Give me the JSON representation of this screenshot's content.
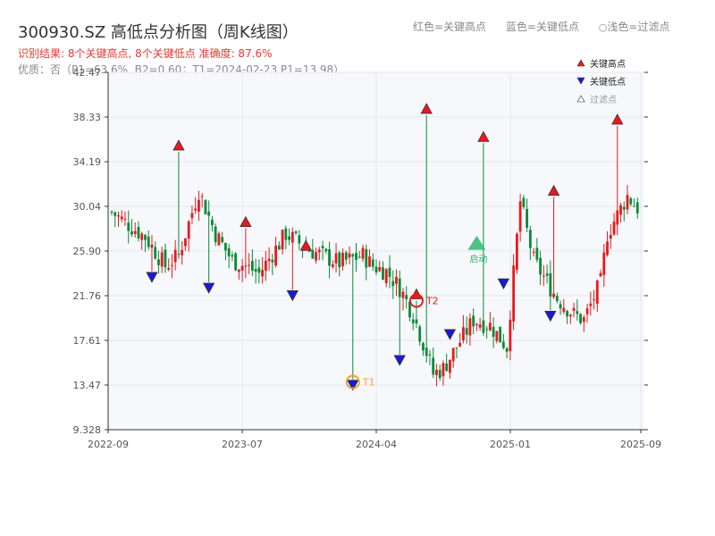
{
  "header": {
    "title": "300930.SZ 高低点分析图（周K线图）",
    "result": "识别结果: 8个关键高点, 8个关键低点   准确度: 87.6%",
    "quality": "优质：否（P1=63.6%, B2=0.60；T1=2024-02-23 P1=13.98）",
    "legend_high": "红色=关键高点",
    "legend_low": "蓝色=关键低点",
    "legend_filtered": "浅色=过滤点"
  },
  "chart_data": {
    "type": "candlestick",
    "ylim": [
      9.328,
      42.47
    ],
    "y_ticks": [
      "9.328",
      "13.47",
      "17.61",
      "21.76",
      "25.90",
      "30.04",
      "34.19",
      "38.33",
      "42.47"
    ],
    "x_ticks": [
      "2022-09",
      "2023-07",
      "2024-04",
      "2025-01",
      "2025-09"
    ],
    "grid": true,
    "legend": {
      "position": "top-right",
      "items": [
        "关键高点",
        "关键低点",
        "过滤点"
      ]
    },
    "colors": {
      "up": "#e8191e",
      "down": "#0a8a37",
      "high": "#e8191e",
      "low": "#1a1ad6",
      "filtered": "#c8c8c8",
      "t1": "#f0a030",
      "t2": "#e8191e",
      "start": "#2eb872"
    },
    "candle_count": 158,
    "closes_start": 29.5,
    "closes_path": [
      [
        0,
        29.5
      ],
      [
        10,
        27.2
      ],
      [
        16,
        24.5
      ],
      [
        20,
        25.5
      ],
      [
        26,
        31.5
      ],
      [
        31,
        27.5
      ],
      [
        36,
        25.0
      ],
      [
        40,
        24.5
      ],
      [
        44,
        23.8
      ],
      [
        52,
        27.5
      ],
      [
        59,
        26.0
      ],
      [
        68,
        24.8
      ],
      [
        75,
        25.5
      ],
      [
        78,
        24.5
      ],
      [
        82,
        24.0
      ],
      [
        86,
        22.5
      ],
      [
        90,
        20.0
      ],
      [
        94,
        16.5
      ],
      [
        96,
        14.5
      ],
      [
        99,
        15.0
      ],
      [
        104,
        17.5
      ],
      [
        108,
        19.5
      ],
      [
        113,
        19.0
      ],
      [
        118,
        17.0
      ],
      [
        122,
        30.5
      ],
      [
        126,
        25.0
      ],
      [
        133,
        21.5
      ],
      [
        138,
        20.0
      ],
      [
        141,
        19.5
      ],
      [
        146,
        23.0
      ],
      [
        148,
        27.5
      ],
      [
        154,
        31.0
      ],
      [
        158,
        29.5
      ]
    ],
    "key_highs": [
      {
        "week": 20,
        "value": 35.1
      },
      {
        "week": 40,
        "value": 28.0
      },
      {
        "week": 58,
        "value": 25.8
      },
      {
        "week": 91,
        "value": 21.3
      },
      {
        "week": 94,
        "value": 38.5
      },
      {
        "week": 111,
        "value": 35.9
      },
      {
        "week": 132,
        "value": 30.9
      },
      {
        "week": 151,
        "value": 37.5
      }
    ],
    "key_lows": [
      {
        "week": 12,
        "value": 24.0
      },
      {
        "week": 29,
        "value": 23.0
      },
      {
        "week": 54,
        "value": 22.3
      },
      {
        "week": 72,
        "value": 14.0
      },
      {
        "week": 86,
        "value": 16.3
      },
      {
        "week": 101,
        "value": 18.7
      },
      {
        "week": 117,
        "value": 23.4
      },
      {
        "week": 131,
        "value": 20.4
      }
    ],
    "annotations": [
      {
        "label": "T1",
        "week": 72,
        "value": 14.0
      },
      {
        "label": "T2",
        "week": 91,
        "value": 21.3
      },
      {
        "label": "启动",
        "week": 109,
        "value": 26.5
      }
    ]
  }
}
